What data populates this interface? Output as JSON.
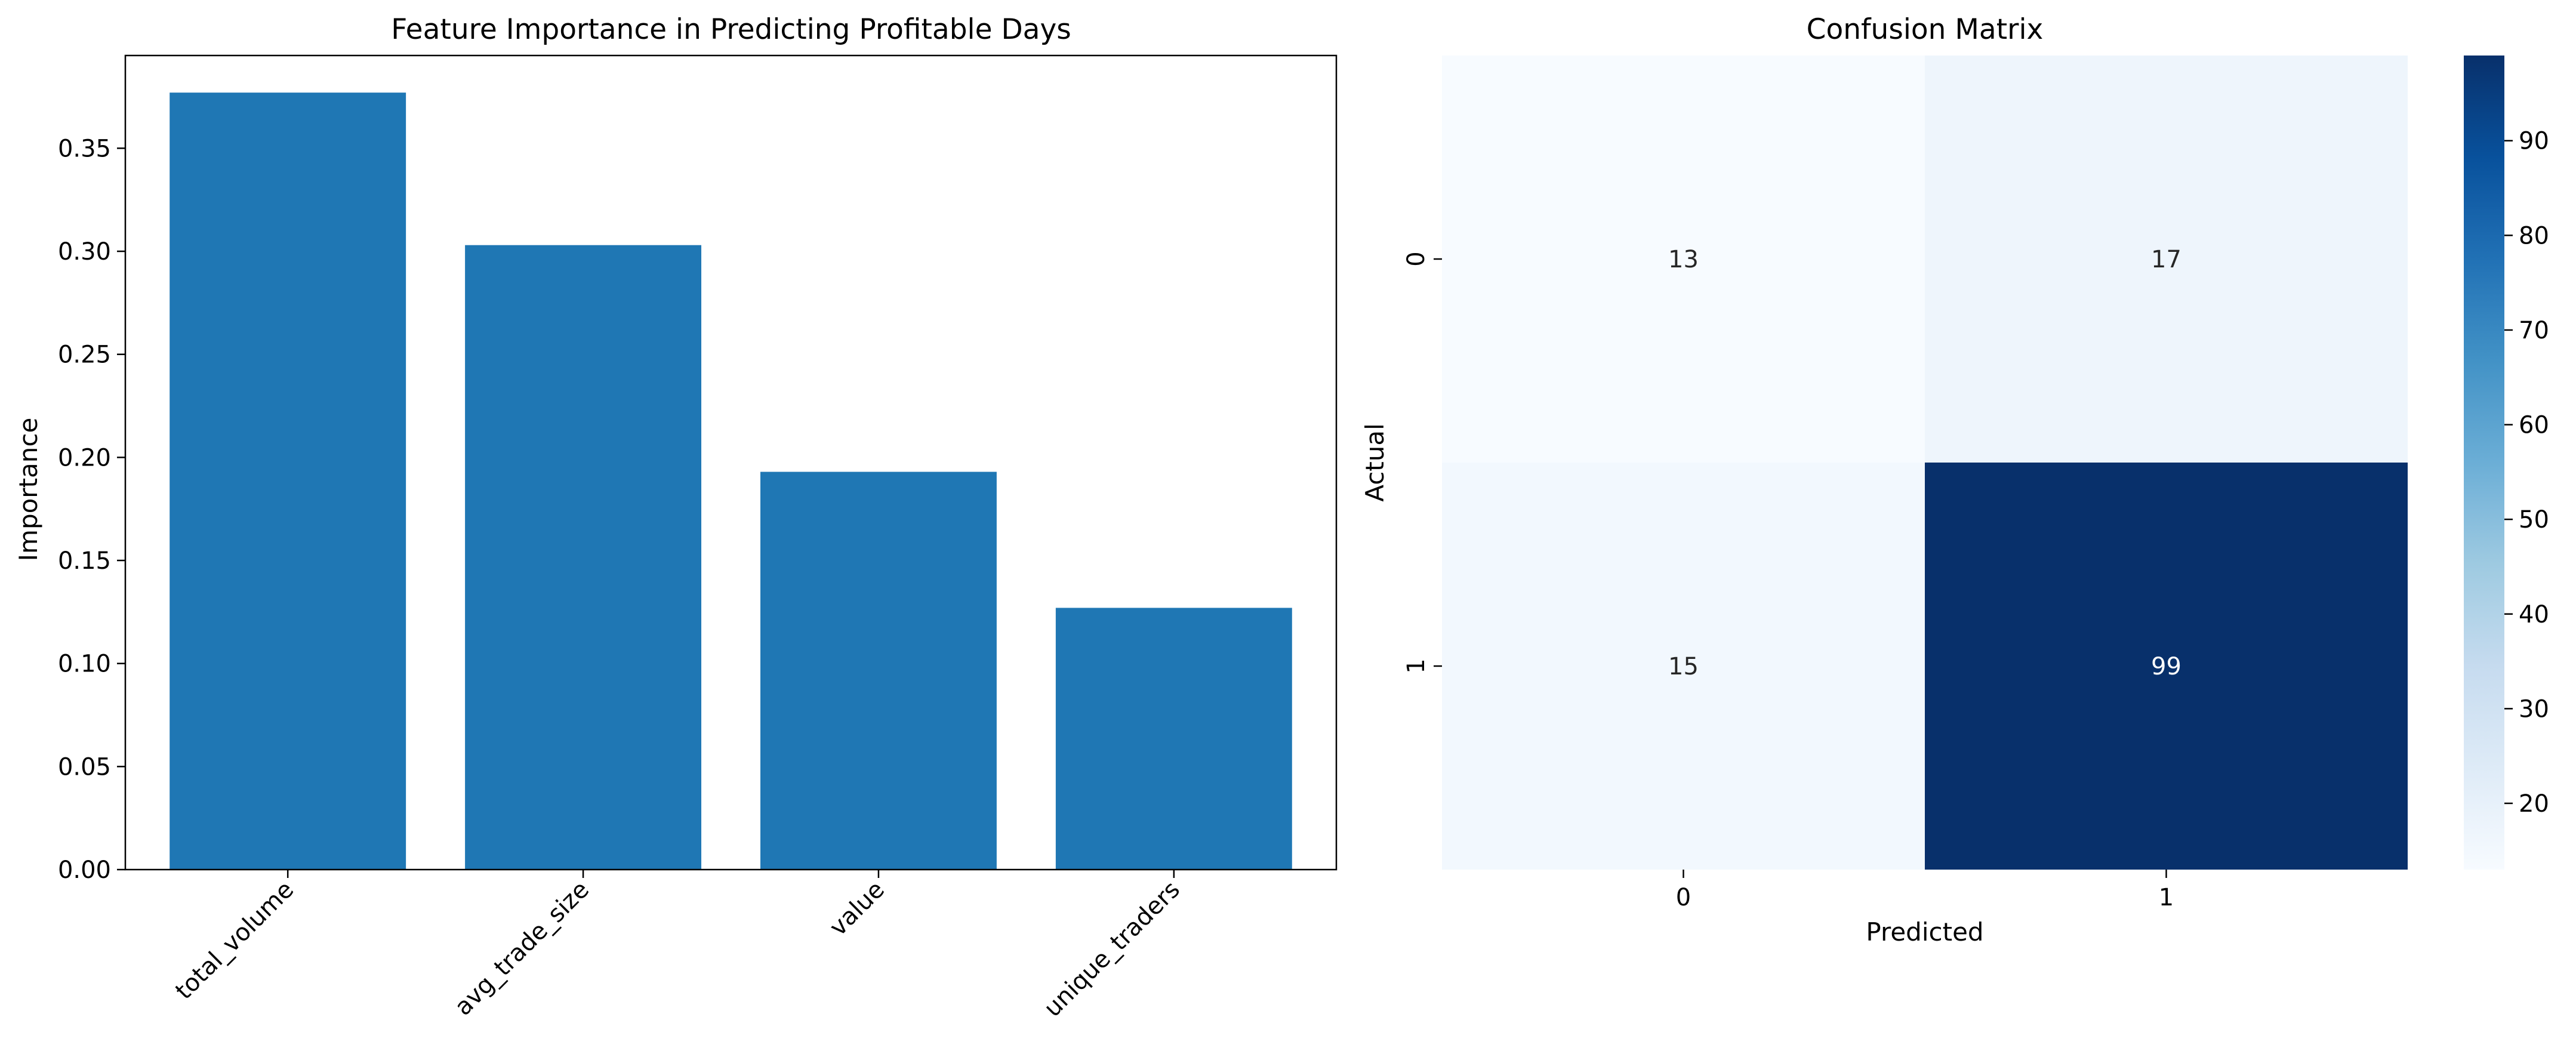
{
  "chart_data": [
    {
      "type": "bar",
      "title": "Feature Importance in Predicting Profitable Days",
      "xlabel": "",
      "ylabel": "Importance",
      "categories": [
        "total_volume",
        "avg_trade_size",
        "value",
        "unique_traders"
      ],
      "values": [
        0.377,
        0.303,
        0.193,
        0.127
      ],
      "ylim": [
        0,
        0.395
      ],
      "yticks": [
        0.0,
        0.05,
        0.1,
        0.15,
        0.2,
        0.25,
        0.3,
        0.35
      ],
      "ytick_labels": [
        "0.00",
        "0.05",
        "0.10",
        "0.15",
        "0.20",
        "0.25",
        "0.30",
        "0.35"
      ],
      "x_tick_rotation_deg": 45,
      "grid": false,
      "colors": {
        "bar": "#1f77b4"
      }
    },
    {
      "type": "heatmap",
      "title": "Confusion Matrix",
      "xlabel": "Predicted",
      "ylabel": "Actual",
      "x_categories": [
        "0",
        "1"
      ],
      "y_categories": [
        "0",
        "1"
      ],
      "values": [
        [
          13,
          17
        ],
        [
          15,
          99
        ]
      ],
      "colormap": "Blues",
      "colorbar": {
        "min": 13,
        "max": 99,
        "ticks": [
          20,
          30,
          40,
          50,
          60,
          70,
          80,
          90
        ],
        "tick_labels": [
          "20",
          "30",
          "40",
          "50",
          "60",
          "70",
          "80",
          "90"
        ]
      },
      "annotation_colors": {
        "light": "#262626",
        "dark": "#ffffff"
      }
    }
  ]
}
